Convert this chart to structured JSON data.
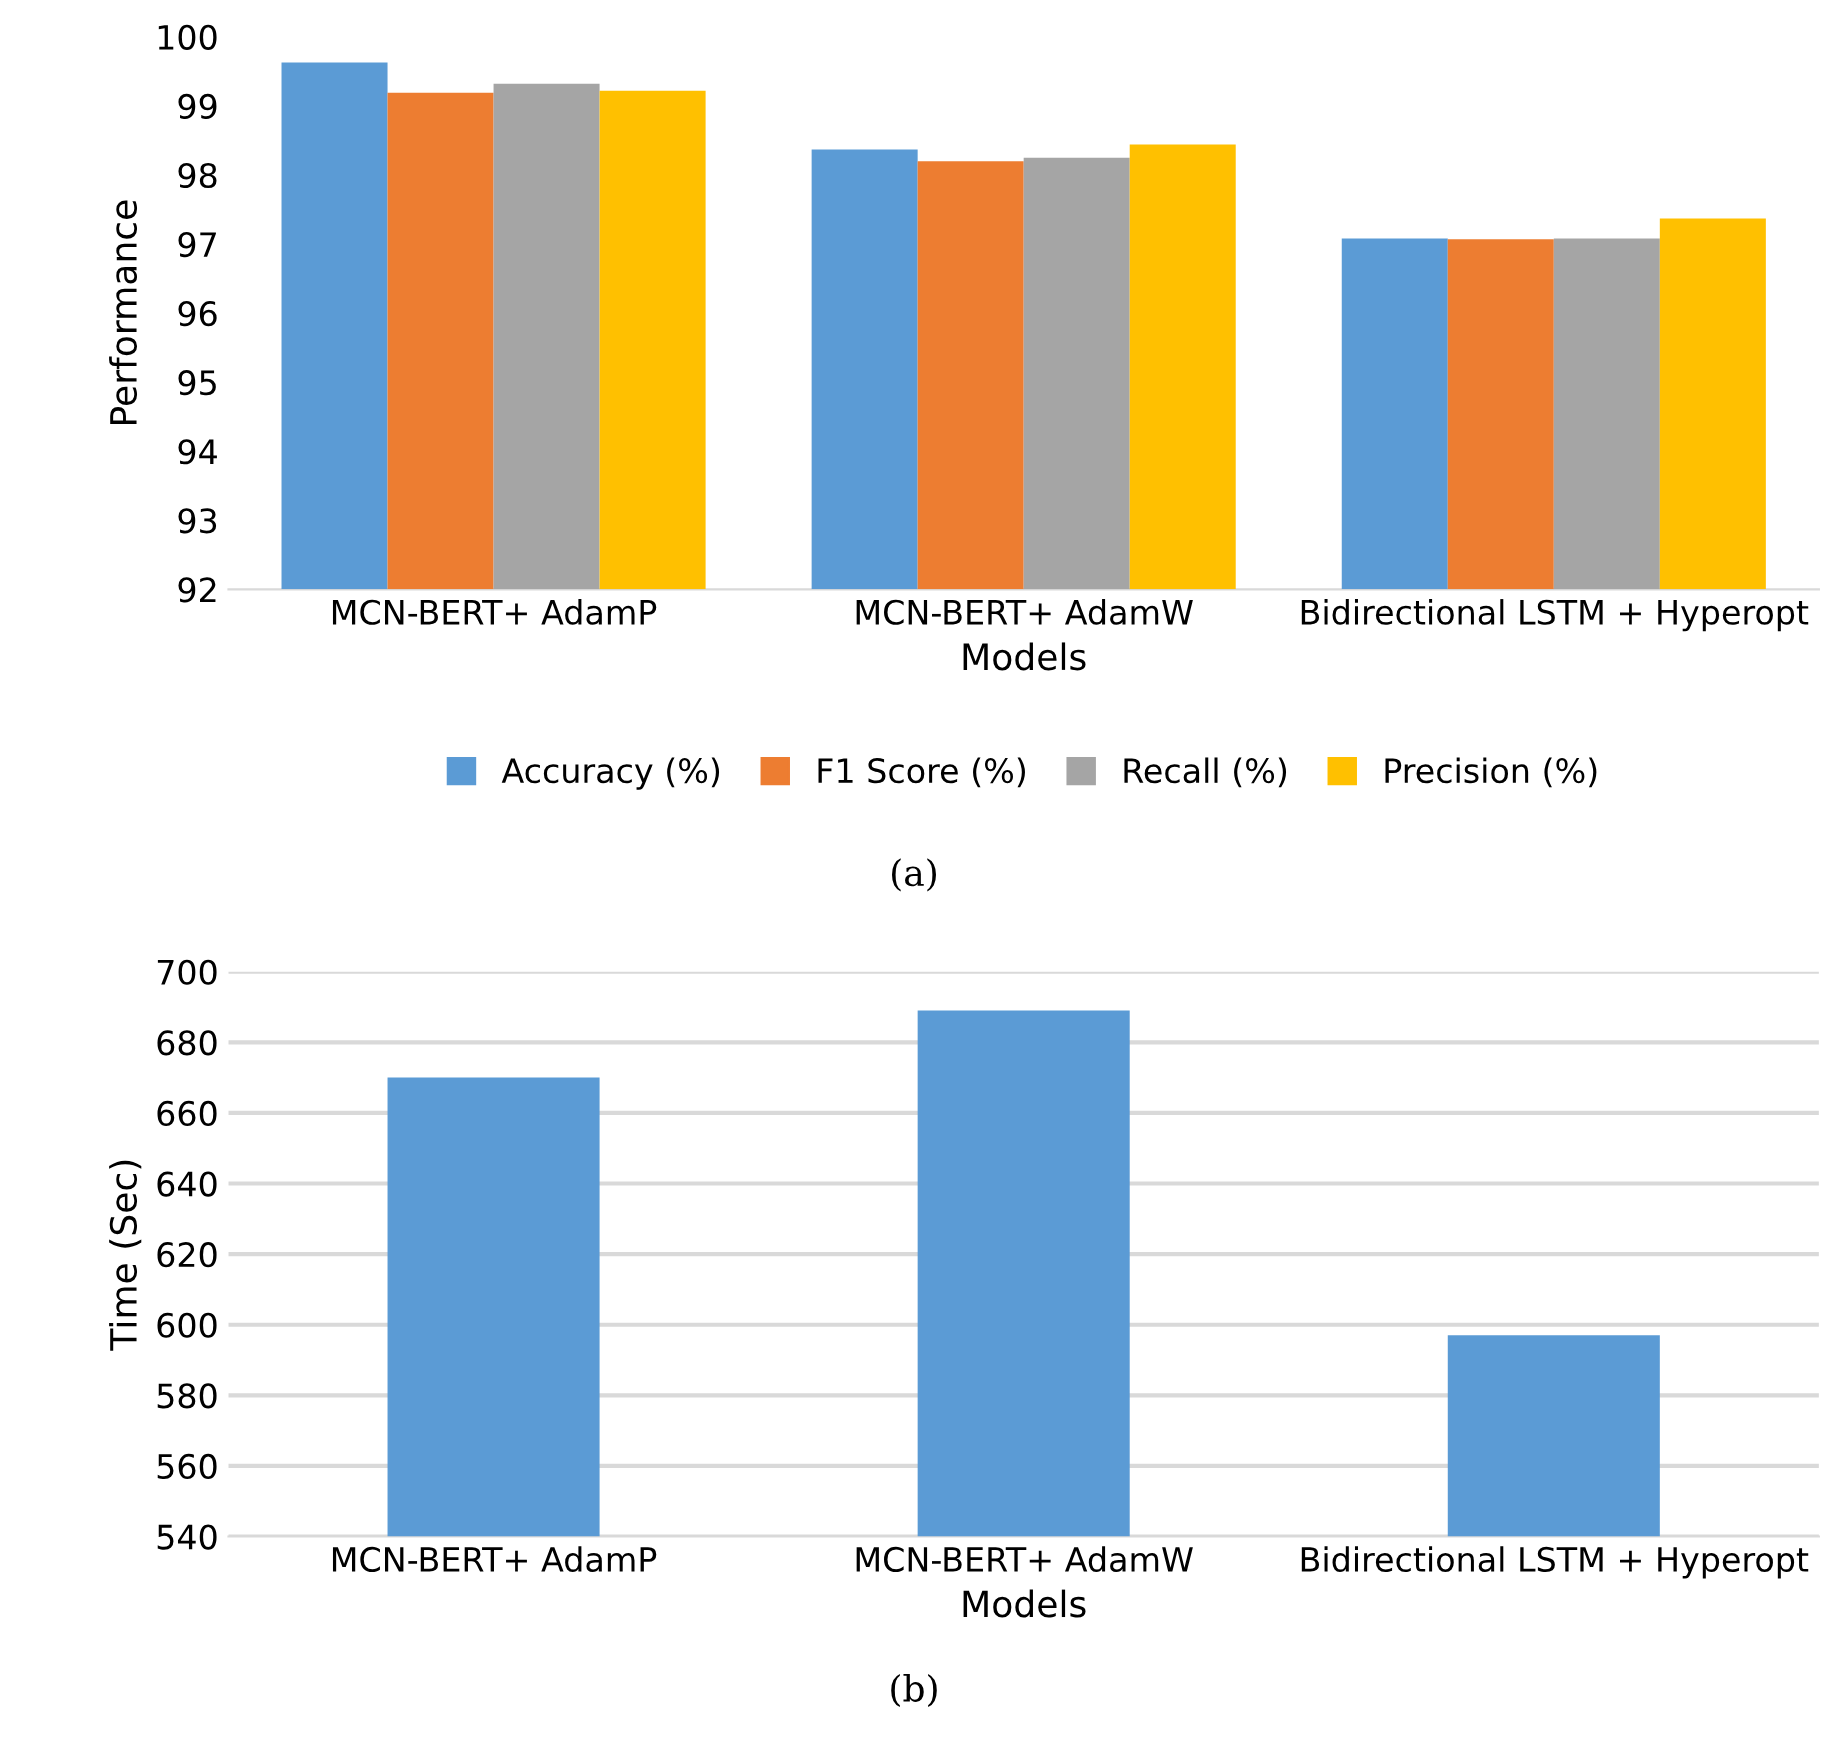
{
  "chart_data": [
    {
      "type": "bar",
      "xlabel": "Models",
      "ylabel": "Performance",
      "categories": [
        "MCN-BERT+ AdamP",
        "MCN-BERT+ AdamW",
        "Bidirectional LSTM + Hyperopt"
      ],
      "series": [
        {
          "name": "Accuracy (%)",
          "color": "#5b9bd5",
          "values": [
            99.63,
            98.37,
            97.08
          ]
        },
        {
          "name": "F1 Score (%)",
          "color": "#ed7d31",
          "values": [
            99.19,
            98.2,
            97.07
          ]
        },
        {
          "name": "Recall (%)",
          "color": "#a5a5a5",
          "values": [
            99.32,
            98.25,
            97.08
          ]
        },
        {
          "name": "Precision (%)",
          "color": "#ffc000",
          "values": [
            99.22,
            98.44,
            97.37
          ]
        }
      ],
      "ylim": [
        92,
        100
      ],
      "yticks": [
        92,
        93,
        94,
        95,
        96,
        97,
        98,
        99,
        100
      ],
      "grid": false,
      "legend": "bottom",
      "annotations": [
        "(a)"
      ]
    },
    {
      "type": "bar",
      "xlabel": "Models",
      "ylabel": "Time (Sec)",
      "categories": [
        "MCN-BERT+ AdamP",
        "MCN-BERT+ AdamW",
        "Bidirectional LSTM + Hyperopt"
      ],
      "series": [
        {
          "color": "#5b9bd5",
          "values": [
            670,
            689,
            597
          ]
        }
      ],
      "ylim": [
        540,
        700
      ],
      "yticks": [
        540,
        560,
        580,
        600,
        620,
        640,
        660,
        680,
        700
      ],
      "grid": "y",
      "legend": false,
      "annotations": [
        "(b)"
      ]
    }
  ]
}
